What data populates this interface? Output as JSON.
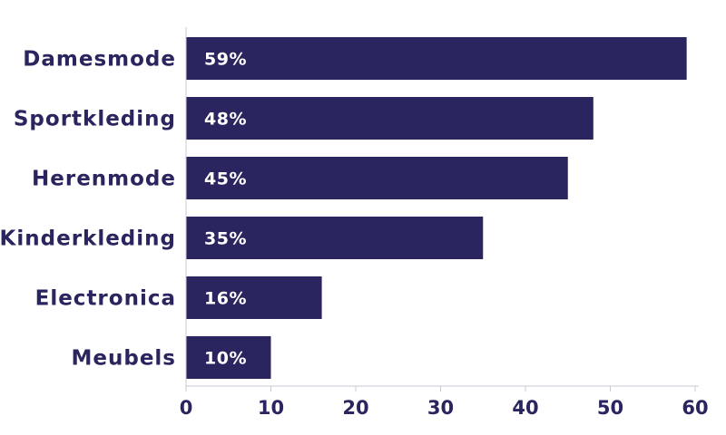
{
  "chart_data": {
    "type": "bar",
    "orientation": "horizontal",
    "categories": [
      "Damesmode",
      "Sportkleding",
      "Herenmode",
      "Kinderkleding",
      "Electronica",
      "Meubels"
    ],
    "values": [
      59,
      48,
      45,
      35,
      16,
      10
    ],
    "data_labels": [
      "59%",
      "48%",
      "45%",
      "35%",
      "16%",
      "10%"
    ],
    "xlim": [
      0,
      60
    ],
    "xticks": [
      "0",
      "10",
      "20",
      "30",
      "40",
      "50",
      "60"
    ],
    "grid": false,
    "colors": {
      "bar": "#2a255f",
      "text": "#2a255f",
      "bar_text": "#ffffff",
      "axis": "#c9c9d4"
    }
  }
}
